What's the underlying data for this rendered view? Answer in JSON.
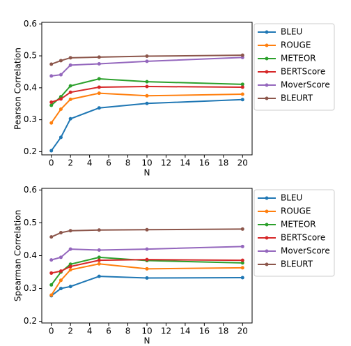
{
  "chart_data": [
    {
      "type": "line",
      "x_label": "N",
      "y_label": "Pearson Correlation",
      "x": [
        0,
        1,
        2,
        5,
        10,
        20
      ],
      "xlim": [
        -1,
        21
      ],
      "xticks": [
        0,
        2,
        4,
        6,
        8,
        10,
        12,
        14,
        16,
        18,
        20
      ],
      "ylim": [
        0.19,
        0.605
      ],
      "yticks": [
        0.2,
        0.3,
        0.4,
        0.5,
        0.6
      ],
      "series": [
        {
          "name": "BLEU",
          "color": "#1f77b4",
          "values": [
            0.203,
            0.245,
            0.303,
            0.337,
            0.351,
            0.363
          ]
        },
        {
          "name": "ROUGE",
          "color": "#ff7f0e",
          "values": [
            0.29,
            0.333,
            0.364,
            0.383,
            0.375,
            0.38
          ]
        },
        {
          "name": "METEOR",
          "color": "#2ca02c",
          "values": [
            0.345,
            0.372,
            0.406,
            0.428,
            0.419,
            0.411
          ]
        },
        {
          "name": "BERTScore",
          "color": "#d62728",
          "values": [
            0.355,
            0.365,
            0.386,
            0.402,
            0.404,
            0.402
          ]
        },
        {
          "name": "MoverScore",
          "color": "#9467bd",
          "values": [
            0.437,
            0.441,
            0.471,
            0.475,
            0.483,
            0.495
          ]
        },
        {
          "name": "BLEURT",
          "color": "#8c564b",
          "values": [
            0.474,
            0.485,
            0.494,
            0.496,
            0.499,
            0.502
          ]
        }
      ]
    },
    {
      "type": "line",
      "x_label": "N",
      "y_label": "Spearman Correlation",
      "x": [
        0,
        1,
        2,
        5,
        10,
        20
      ],
      "xlim": [
        -1,
        21
      ],
      "xticks": [
        0,
        2,
        4,
        6,
        8,
        10,
        12,
        14,
        16,
        18,
        20
      ],
      "ylim": [
        0.195,
        0.605
      ],
      "yticks": [
        0.2,
        0.3,
        0.4,
        0.5,
        0.6
      ],
      "series": [
        {
          "name": "BLEU",
          "color": "#1f77b4",
          "values": [
            0.278,
            0.3,
            0.306,
            0.337,
            0.332,
            0.333
          ]
        },
        {
          "name": "ROUGE",
          "color": "#ff7f0e",
          "values": [
            0.28,
            0.325,
            0.357,
            0.375,
            0.36,
            0.363
          ]
        },
        {
          "name": "METEOR",
          "color": "#2ca02c",
          "values": [
            0.311,
            0.35,
            0.374,
            0.395,
            0.385,
            0.378
          ]
        },
        {
          "name": "BERTScore",
          "color": "#d62728",
          "values": [
            0.347,
            0.353,
            0.367,
            0.386,
            0.388,
            0.386
          ]
        },
        {
          "name": "MoverScore",
          "color": "#9467bd",
          "values": [
            0.387,
            0.395,
            0.42,
            0.417,
            0.42,
            0.428
          ]
        },
        {
          "name": "BLEURT",
          "color": "#8c564b",
          "values": [
            0.457,
            0.47,
            0.476,
            0.478,
            0.479,
            0.481
          ]
        }
      ]
    }
  ]
}
